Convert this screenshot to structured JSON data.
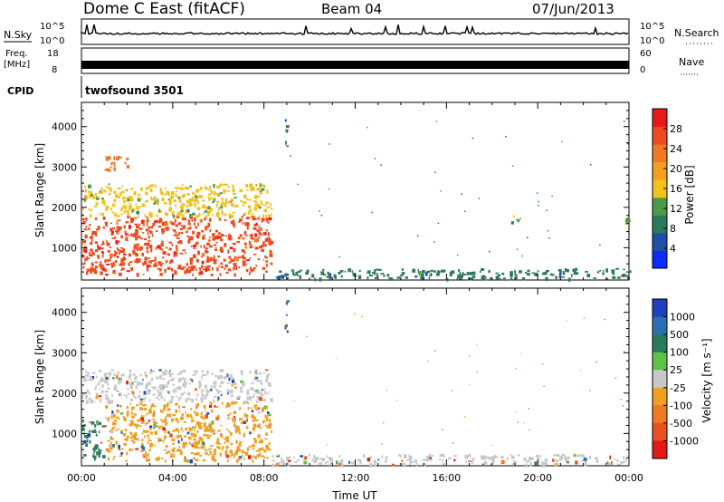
{
  "header": {
    "station": "Dome C East (fitACF)",
    "beam": "Beam 04",
    "date": "07/Jun/2013"
  },
  "status_panels": {
    "nsky_label": "N.Sky",
    "nsky_ticks": [
      "10^5",
      "10^0"
    ],
    "nsearch_label": "N.Search",
    "nsearch_ticks": [
      "10^5",
      "10^0"
    ],
    "freq_label": "Freq.",
    "freq_unit": "[MHz]",
    "freq_ticks": [
      "18",
      "8"
    ],
    "nave_label": "Nave",
    "nave_ticks": [
      "60",
      "0"
    ],
    "cpid_label": "CPID",
    "cpid_value": "twofsound 3501"
  },
  "colors": {
    "power": [
      "#0a2dff",
      "#1f4fa8",
      "#2c7a5c",
      "#4a9a4a",
      "#f2c21b",
      "#f2a025",
      "#f07a22",
      "#ee4a1e",
      "#e8181a"
    ],
    "velocity": [
      "#1f3fc0",
      "#2c6fb0",
      "#2c7a5c",
      "#5ec24a",
      "#c8c8c8",
      "#f0a020",
      "#ee7a20",
      "#e8521e",
      "#e01818"
    ]
  },
  "chart_data": [
    {
      "type": "heatmap",
      "name": "power-panel",
      "xlabel": "",
      "ylabel": "Slant Range [km]",
      "xlim": [
        "00:00",
        "24:00"
      ],
      "ylim": [
        200,
        4600
      ],
      "y_ticks": [
        1000,
        2000,
        3000,
        4000
      ],
      "colorbar": {
        "label": "Power [dB]",
        "ticks": [
          "4",
          "8",
          "12",
          "16",
          "20",
          "24",
          "28"
        ],
        "range": [
          0,
          30
        ]
      },
      "regions": [
        {
          "t0": 0.0,
          "t1": 8.3,
          "r0": 350,
          "r1": 1800,
          "level": 27
        },
        {
          "t0": 0.0,
          "t1": 8.3,
          "r0": 1800,
          "r1": 2600,
          "level": 14
        },
        {
          "t0": 1.0,
          "t1": 2.0,
          "r0": 2900,
          "r1": 3300,
          "level": 24
        },
        {
          "t0": 8.9,
          "t1": 9.0,
          "r0": 3500,
          "r1": 4400,
          "level": 6
        },
        {
          "t0": 18.8,
          "t1": 19.4,
          "r0": 1650,
          "r1": 1850,
          "level": 10
        },
        {
          "t0": 23.8,
          "t1": 24.0,
          "r0": 1600,
          "r1": 1750,
          "level": 10
        },
        {
          "t0": 8.3,
          "t1": 24.0,
          "r0": 250,
          "r1": 500,
          "level": 8
        }
      ]
    },
    {
      "type": "heatmap",
      "name": "velocity-panel",
      "xlabel": "Time UT",
      "ylabel": "Slant Range [km]",
      "xlim": [
        "00:00",
        "24:00"
      ],
      "ylim": [
        200,
        4600
      ],
      "x_ticks": [
        "00:00",
        "04:00",
        "08:00",
        "12:00",
        "16:00",
        "20:00",
        "00:00"
      ],
      "y_ticks": [
        1000,
        2000,
        3000,
        4000
      ],
      "colorbar": {
        "label": "Velocity [m s⁻¹]",
        "ticks": [
          "1000",
          "500",
          "100",
          "25",
          "-25",
          "-100",
          "-500",
          "-1000"
        ]
      },
      "regions": [
        {
          "t0": 0.0,
          "t1": 1.0,
          "r0": 400,
          "r1": 1400,
          "level": "100"
        },
        {
          "t0": 1.0,
          "t1": 8.3,
          "r0": 350,
          "r1": 1800,
          "level": "-100"
        },
        {
          "t0": 0.0,
          "t1": 8.3,
          "r0": 1800,
          "r1": 2600,
          "level": "-25"
        },
        {
          "t0": 8.9,
          "t1": 9.0,
          "r0": 3500,
          "r1": 4400,
          "level": "500"
        },
        {
          "t0": 8.3,
          "t1": 24.0,
          "r0": 250,
          "r1": 500,
          "level": "-25"
        }
      ]
    }
  ]
}
